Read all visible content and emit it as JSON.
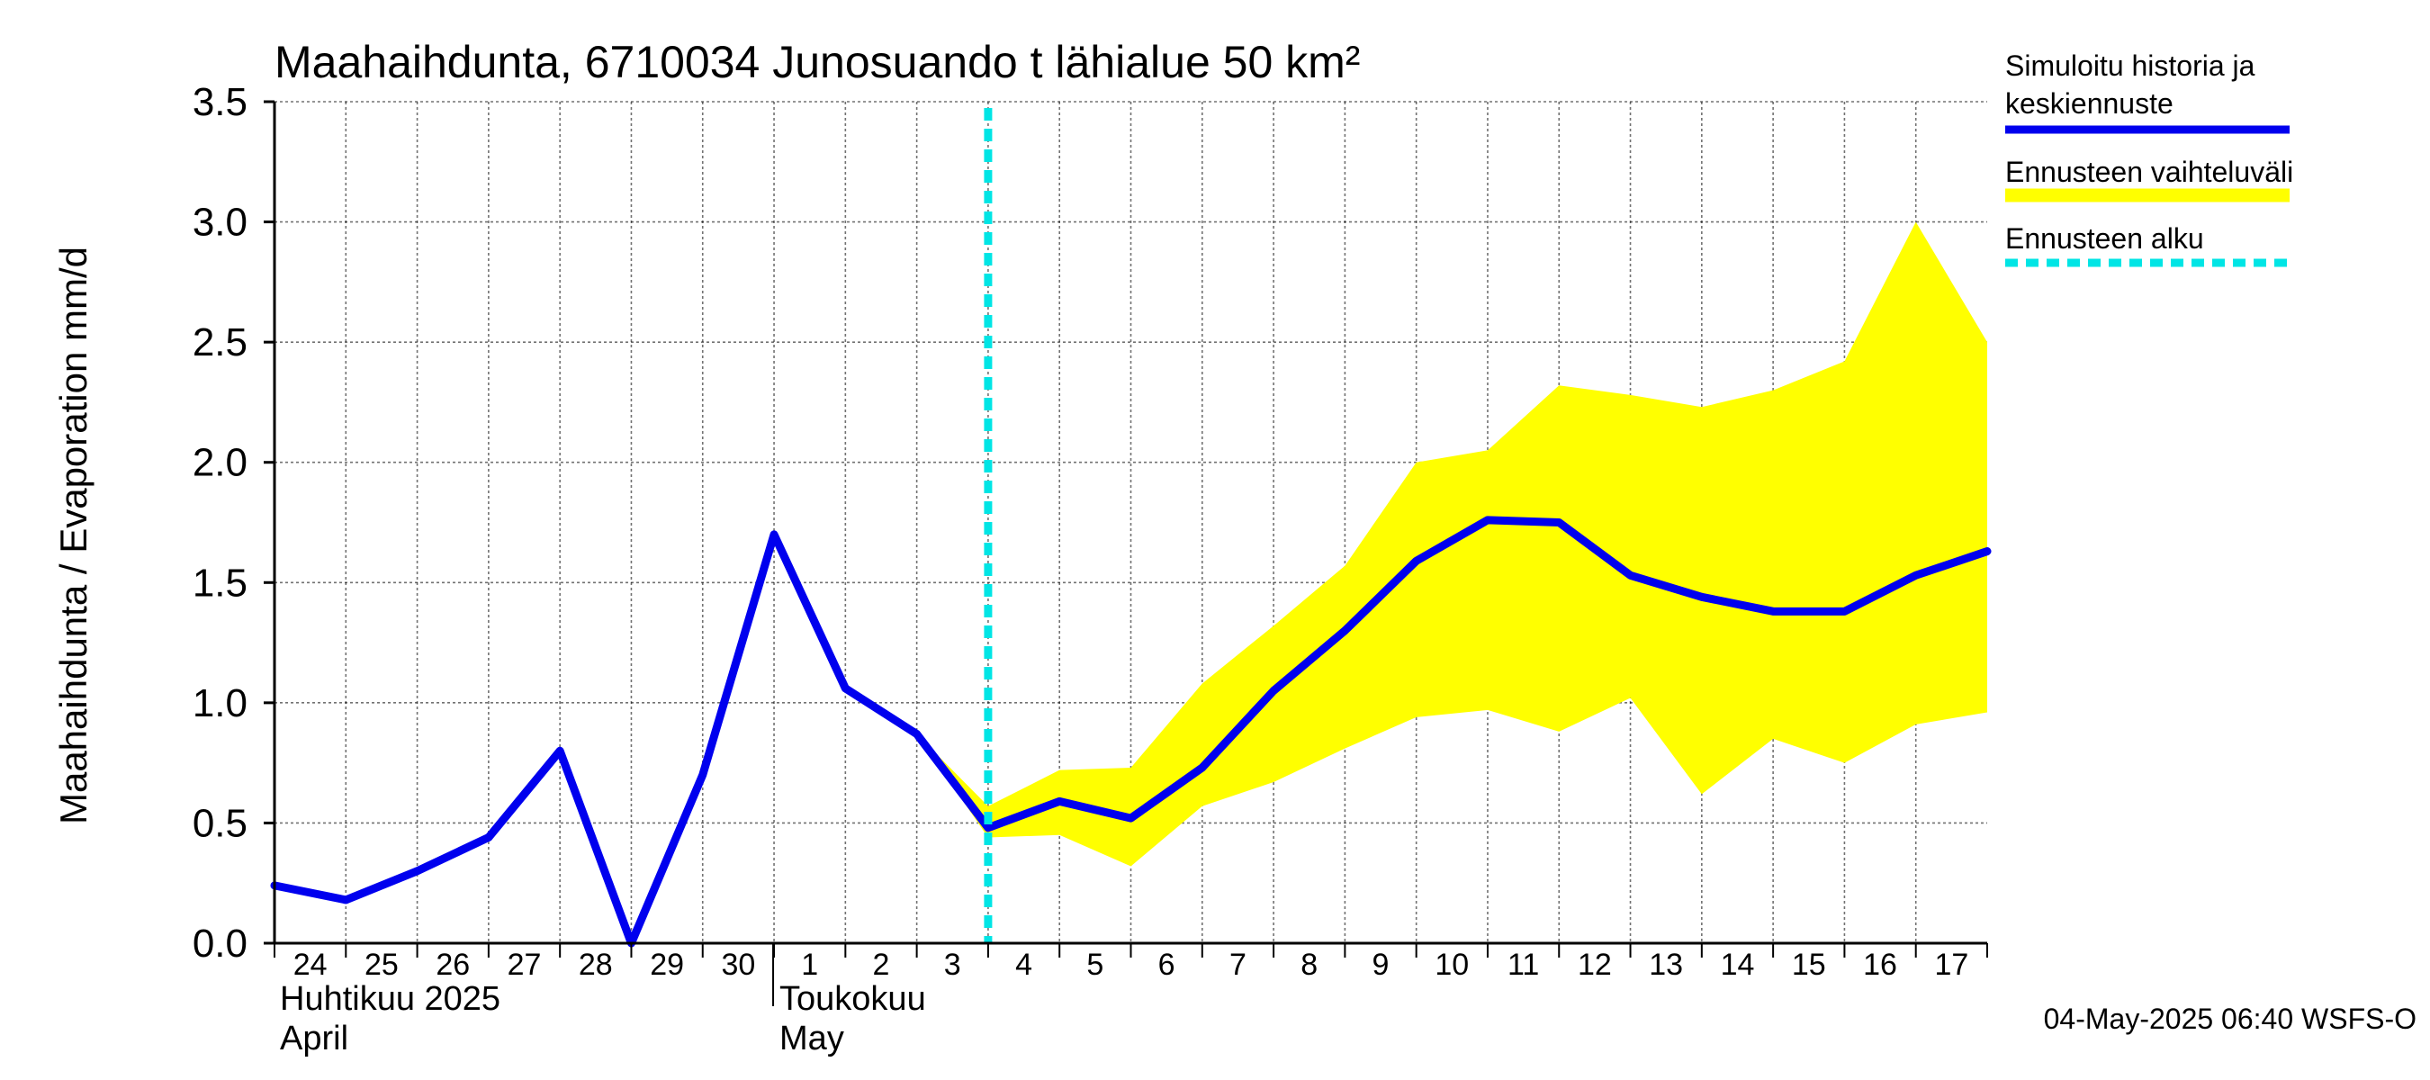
{
  "chart_data": {
    "type": "line",
    "title": "Maahaihdunta, 6710034 Junosuando t lähialue 50 km²",
    "ylabel": "Maahaihdunta / Evaporation   mm/d",
    "ylim": [
      0,
      3.5
    ],
    "yticks": [
      "0.0",
      "0.5",
      "1.0",
      "1.5",
      "2.0",
      "2.5",
      "3.0",
      "3.5"
    ],
    "x_start": "2025-04-24",
    "x_end": "2025-05-18",
    "x_day_labels": [
      "24",
      "25",
      "26",
      "27",
      "28",
      "29",
      "30",
      "1",
      "2",
      "3",
      "4",
      "5",
      "6",
      "7",
      "8",
      "9",
      "10",
      "11",
      "12",
      "13",
      "14",
      "15",
      "16",
      "17"
    ],
    "months": [
      {
        "fi": "Huhtikuu  2025",
        "en": "April",
        "start": "2025-04-24"
      },
      {
        "fi": "Toukokuu",
        "en": "May",
        "start": "2025-05-01"
      }
    ],
    "forecast_start": "2025-05-04",
    "grid": true,
    "legend_position": "right",
    "series": [
      {
        "name": "Simuloitu historia ja keskiennuste",
        "color": "#0000ee",
        "points": [
          [
            "2025-04-24",
            0.24
          ],
          [
            "2025-04-25",
            0.18
          ],
          [
            "2025-04-26",
            0.3
          ],
          [
            "2025-04-27",
            0.44
          ],
          [
            "2025-04-28",
            0.8
          ],
          [
            "2025-04-29",
            0.0
          ],
          [
            "2025-04-30",
            0.7
          ],
          [
            "2025-05-01",
            1.7
          ],
          [
            "2025-05-02",
            1.06
          ],
          [
            "2025-05-03",
            0.87
          ],
          [
            "2025-05-04",
            0.48
          ],
          [
            "2025-05-05",
            0.59
          ],
          [
            "2025-05-06",
            0.52
          ],
          [
            "2025-05-07",
            0.73
          ],
          [
            "2025-05-08",
            1.05
          ],
          [
            "2025-05-09",
            1.3
          ],
          [
            "2025-05-10",
            1.59
          ],
          [
            "2025-05-11",
            1.76
          ],
          [
            "2025-05-12",
            1.75
          ],
          [
            "2025-05-13",
            1.53
          ],
          [
            "2025-05-14",
            1.44
          ],
          [
            "2025-05-15",
            1.38
          ],
          [
            "2025-05-16",
            1.38
          ],
          [
            "2025-05-17",
            1.53
          ],
          [
            "2025-05-18",
            1.63
          ]
        ]
      },
      {
        "name": "Ennusteen vaihteluväli",
        "color": "#ffff00",
        "band": [
          [
            "2025-05-03",
            0.87,
            0.87
          ],
          [
            "2025-05-04",
            0.44,
            0.57
          ],
          [
            "2025-05-05",
            0.45,
            0.72
          ],
          [
            "2025-05-06",
            0.32,
            0.73
          ],
          [
            "2025-05-07",
            0.57,
            1.08
          ],
          [
            "2025-05-08",
            0.67,
            1.32
          ],
          [
            "2025-05-09",
            0.81,
            1.57
          ],
          [
            "2025-05-10",
            0.94,
            2.0
          ],
          [
            "2025-05-11",
            0.97,
            2.05
          ],
          [
            "2025-05-12",
            0.88,
            2.32
          ],
          [
            "2025-05-13",
            1.02,
            2.28
          ],
          [
            "2025-05-14",
            0.62,
            2.23
          ],
          [
            "2025-05-15",
            0.85,
            2.3
          ],
          [
            "2025-05-16",
            0.75,
            2.42
          ],
          [
            "2025-05-17",
            0.91,
            3.0
          ],
          [
            "2025-05-18",
            0.96,
            2.5
          ]
        ]
      },
      {
        "name": "Ennusteen alku",
        "color": "#00e5e5"
      }
    ]
  },
  "legend": {
    "hist_line1": "Simuloitu historia ja",
    "hist_line2": "keskiennuste",
    "band": "Ennusteen vaihteluväli",
    "start": "Ennusteen alku"
  },
  "footer": {
    "timestamp": "04-May-2025 06:40 WSFS-O"
  }
}
